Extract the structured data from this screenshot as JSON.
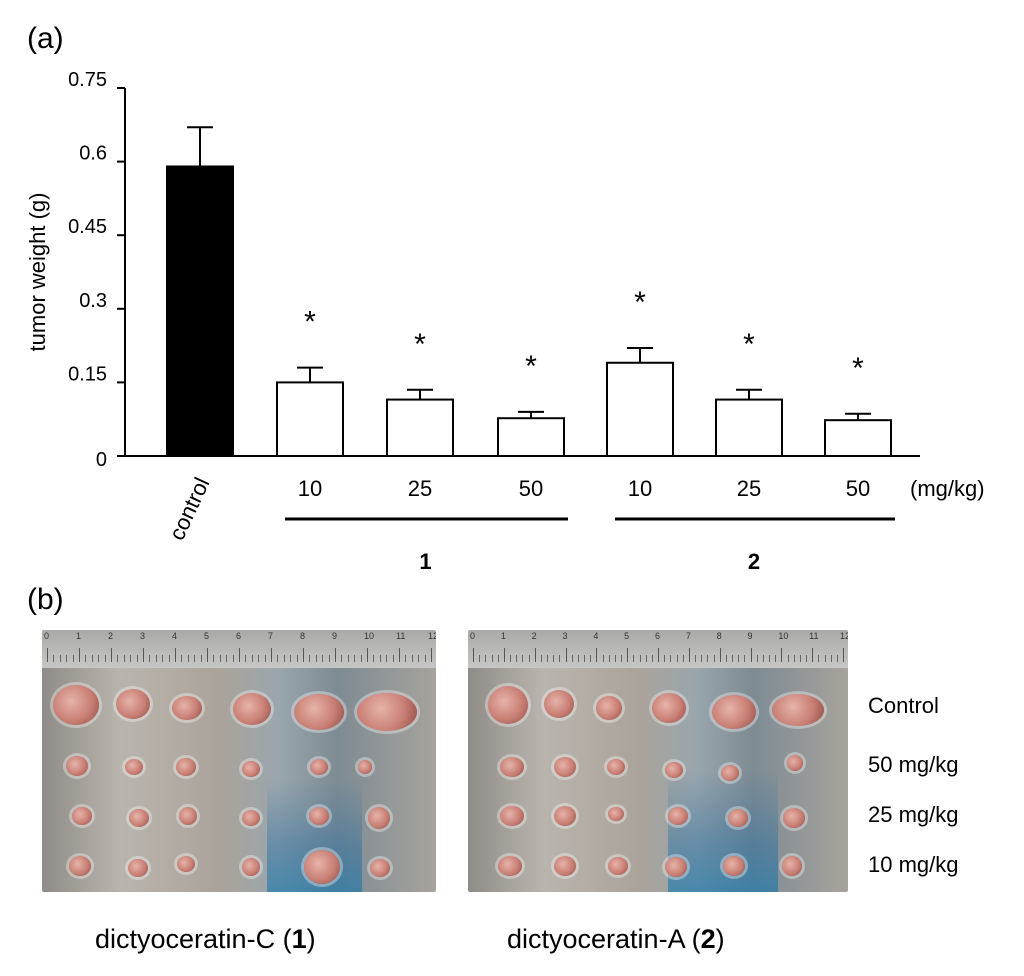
{
  "panel_a_label": "(a)",
  "panel_b_label": "(b)",
  "chart_data": {
    "type": "bar",
    "ylabel": "tumor weight (g)",
    "ylim": [
      0,
      0.75
    ],
    "yticks": [
      0,
      0.15,
      0.3,
      0.45,
      0.6,
      0.75
    ],
    "ytick_labels": [
      "0",
      "0.15",
      "0.3",
      "0.45",
      "0.6",
      "0.75"
    ],
    "bars": [
      {
        "category": "control",
        "value": 0.59,
        "error": 0.08,
        "fill": "#000000",
        "significant": false
      },
      {
        "category": "10",
        "group": "1",
        "value": 0.15,
        "error": 0.03,
        "fill": "#ffffff",
        "significant": true
      },
      {
        "category": "25",
        "group": "1",
        "value": 0.115,
        "error": 0.02,
        "fill": "#ffffff",
        "significant": true
      },
      {
        "category": "50",
        "group": "1",
        "value": 0.077,
        "error": 0.013,
        "fill": "#ffffff",
        "significant": true
      },
      {
        "category": "10",
        "group": "2",
        "value": 0.19,
        "error": 0.03,
        "fill": "#ffffff",
        "significant": true
      },
      {
        "category": "25",
        "group": "2",
        "value": 0.115,
        "error": 0.02,
        "fill": "#ffffff",
        "significant": true
      },
      {
        "category": "50",
        "group": "2",
        "value": 0.073,
        "error": 0.013,
        "fill": "#ffffff",
        "significant": true
      }
    ],
    "significance_marker": "*",
    "unit_label": "(mg/kg)",
    "groups": [
      {
        "label": "1",
        "members": [
          1,
          2,
          3
        ]
      },
      {
        "label": "2",
        "members": [
          4,
          5,
          6
        ]
      }
    ]
  },
  "photo_rows": [
    "Control",
    "50 mg/kg",
    "25 mg/kg",
    "10 mg/kg"
  ],
  "captions": [
    {
      "prefix": "dictyoceratin-C (",
      "bold": "1",
      "suffix": ")"
    },
    {
      "prefix": "dictyoceratin-A (",
      "bold": "2",
      "suffix": ")"
    }
  ],
  "ruler_numbers": [
    "0",
    "1",
    "2",
    "3",
    "4",
    "5",
    "6",
    "7",
    "8",
    "9",
    "10",
    "11",
    "12"
  ]
}
